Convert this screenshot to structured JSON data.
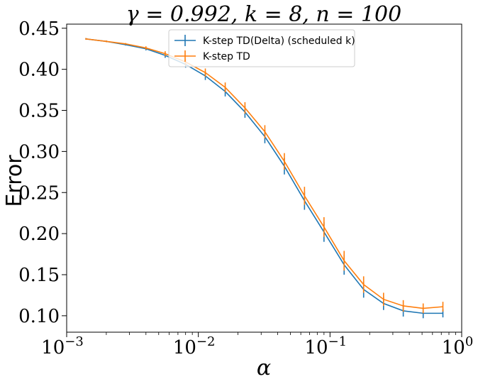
{
  "chart_data": {
    "type": "line",
    "title": "γ = 0.992, k = 8, n = 100",
    "xlabel": "α",
    "ylabel": "Error",
    "x_scale": "log",
    "xlim": [
      0.001,
      1
    ],
    "ylim": [
      0.08,
      0.455
    ],
    "x_ticks": [
      {
        "value": 0.001,
        "base": "10",
        "exp": "−3"
      },
      {
        "value": 0.01,
        "base": "10",
        "exp": "−2"
      },
      {
        "value": 0.1,
        "base": "10",
        "exp": "−1"
      },
      {
        "value": 1,
        "base": "10",
        "exp": "0"
      }
    ],
    "y_ticks": [
      {
        "value": 0.1,
        "label": "0.10"
      },
      {
        "value": 0.15,
        "label": "0.15"
      },
      {
        "value": 0.2,
        "label": "0.20"
      },
      {
        "value": 0.25,
        "label": "0.25"
      },
      {
        "value": 0.3,
        "label": "0.30"
      },
      {
        "value": 0.35,
        "label": "0.35"
      },
      {
        "value": 0.4,
        "label": "0.40"
      },
      {
        "value": 0.45,
        "label": "0.45"
      }
    ],
    "legend_position": "top-center",
    "grid": false,
    "x": [
      0.0014,
      0.002,
      0.0028,
      0.004,
      0.0056,
      0.008,
      0.0113,
      0.016,
      0.0226,
      0.032,
      0.045,
      0.064,
      0.09,
      0.128,
      0.18,
      0.255,
      0.36,
      0.51,
      0.72
    ],
    "series": [
      {
        "name": "K-step TD(Delta) (scheduled k)",
        "color": "#1f77b4",
        "values": [
          0.437,
          0.434,
          0.43,
          0.425,
          0.417,
          0.406,
          0.392,
          0.373,
          0.348,
          0.318,
          0.282,
          0.24,
          0.202,
          0.162,
          0.132,
          0.115,
          0.106,
          0.103,
          0.103
        ],
        "errors": [
          0.001,
          0.001,
          0.001,
          0.002,
          0.003,
          0.004,
          0.005,
          0.006,
          0.007,
          0.008,
          0.01,
          0.011,
          0.012,
          0.012,
          0.01,
          0.008,
          0.007,
          0.006,
          0.005
        ]
      },
      {
        "name": "K-step TD",
        "color": "#ff7f0e",
        "values": [
          0.437,
          0.434,
          0.431,
          0.426,
          0.419,
          0.409,
          0.396,
          0.378,
          0.353,
          0.324,
          0.288,
          0.246,
          0.208,
          0.167,
          0.138,
          0.12,
          0.112,
          0.109,
          0.111
        ],
        "errors": [
          0.001,
          0.001,
          0.001,
          0.002,
          0.003,
          0.004,
          0.005,
          0.006,
          0.007,
          0.008,
          0.01,
          0.011,
          0.012,
          0.012,
          0.01,
          0.008,
          0.007,
          0.006,
          0.006
        ]
      }
    ]
  }
}
